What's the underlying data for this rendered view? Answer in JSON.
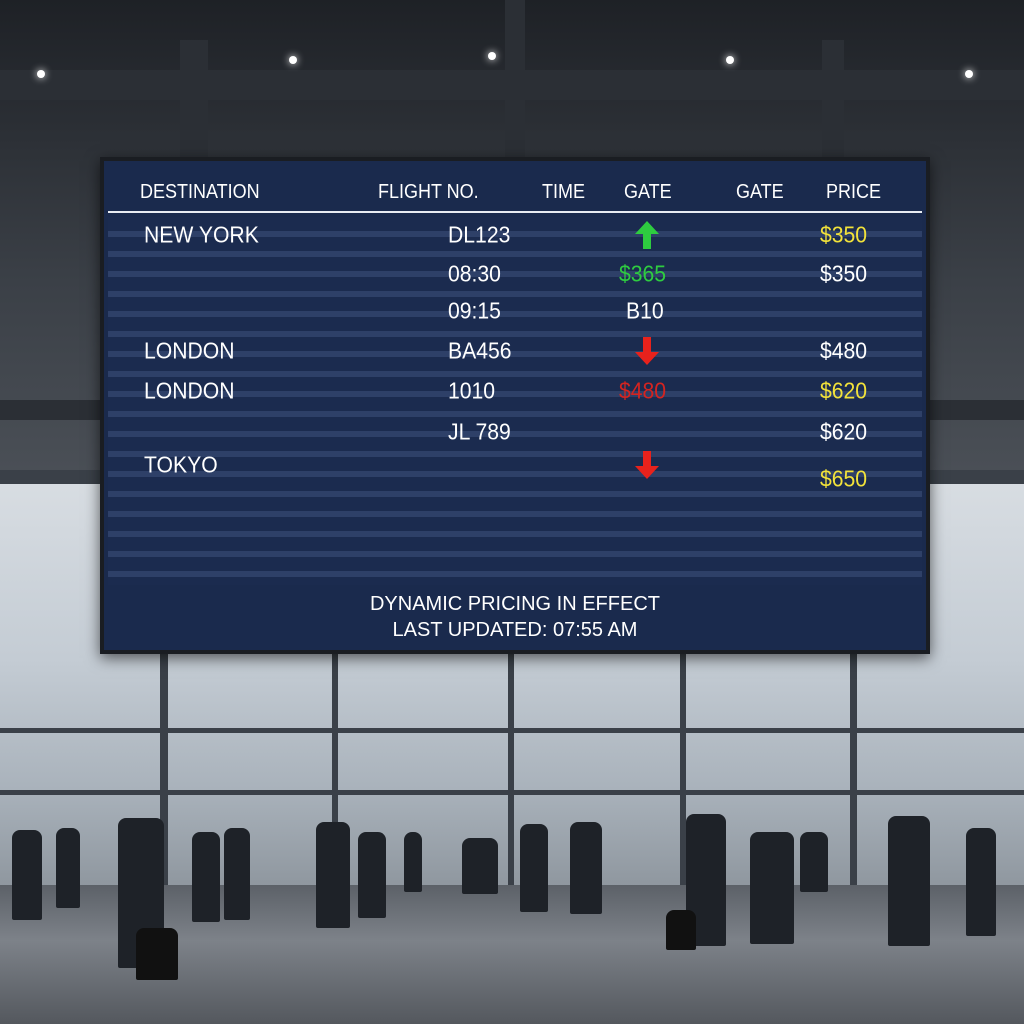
{
  "board": {
    "headers": [
      "DESTINATION",
      "FLIGHT NO.",
      "TIME",
      "GATE",
      "GATE",
      "PRICE"
    ],
    "rows": [
      [
        {
          "col": "dest",
          "text": "NEW YORK"
        },
        {
          "col": "flight",
          "text": "DL123"
        },
        {
          "col": "gate",
          "icon": "arrow-up-icon",
          "color": "#2ecc40"
        },
        {
          "col": "price",
          "text": "$350",
          "color": "#f2e23a"
        }
      ],
      [
        {
          "col": "flight",
          "text": "08:30"
        },
        {
          "col": "gate",
          "text": "$365",
          "color": "#2ecc40"
        },
        {
          "col": "price",
          "text": "$350"
        }
      ],
      [
        {
          "col": "flight",
          "text": "09:15"
        },
        {
          "col": "gate",
          "text": "B10"
        }
      ],
      [
        {
          "col": "dest",
          "text": "LONDON"
        },
        {
          "col": "flight",
          "text": "BA456"
        },
        {
          "col": "gate",
          "icon": "arrow-down-icon",
          "color": "#e8221c"
        },
        {
          "col": "price",
          "text": "$480"
        }
      ],
      [
        {
          "col": "dest",
          "text": "LONDON"
        },
        {
          "col": "flight",
          "text": "1010"
        },
        {
          "col": "gate",
          "text": "$480",
          "color": "#d42420"
        },
        {
          "col": "price",
          "text": "$620",
          "color": "#f2e23a"
        }
      ],
      [
        {
          "col": "flight",
          "text": "JL 789"
        },
        {
          "col": "price",
          "text": "$620"
        }
      ],
      [
        {
          "col": "dest",
          "text": "TOKYO"
        },
        {
          "col": "gate",
          "icon": "arrow-down-icon",
          "color": "#e8221c"
        }
      ],
      [
        {
          "col": "price",
          "text": "$650",
          "color": "#f2e23a"
        }
      ]
    ],
    "footer_line1": "DYNAMIC PRICING IN EFFECT",
    "footer_line2": "LAST UPDATED: 07:55 AM"
  }
}
